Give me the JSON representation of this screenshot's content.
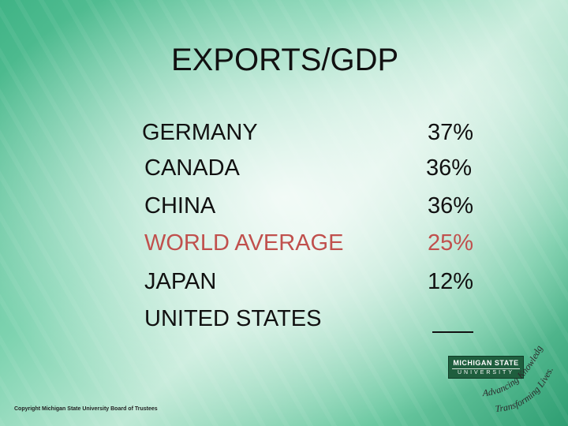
{
  "slide": {
    "title": "EXPORTS/GDP",
    "rows": [
      {
        "country": "GERMANY",
        "value": "37%",
        "highlight": false
      },
      {
        "country": "CANADA",
        "value": "36%",
        "highlight": false
      },
      {
        "country": "CHINA",
        "value": "36%",
        "highlight": false
      },
      {
        "country": "WORLD AVERAGE",
        "value": "25%",
        "highlight": true
      },
      {
        "country": "JAPAN",
        "value": "12%",
        "highlight": false
      },
      {
        "country": "UNITED STATES",
        "value": "",
        "highlight": false
      }
    ],
    "highlight_color": "#c0504d",
    "copyright": "Copyright Michigan State University Board of Trustees"
  },
  "logo": {
    "line1": "MICHIGAN STATE",
    "line2": "UNIVERSITY",
    "tagline": "Advancing Knowledge. Transforming Lives.",
    "color": "#1f5e3e"
  }
}
